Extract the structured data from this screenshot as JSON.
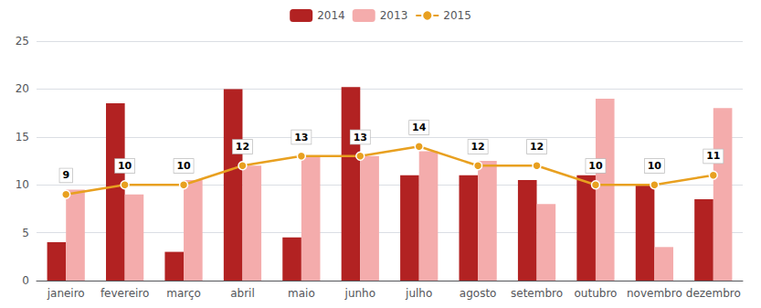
{
  "chart_data": {
    "type": "bar",
    "categories": [
      "janeiro",
      "fevereiro",
      "março",
      "abril",
      "maio",
      "junho",
      "julho",
      "agosto",
      "setembro",
      "outubro",
      "novembro",
      "dezembro"
    ],
    "series": [
      {
        "name": "2014",
        "type": "bar",
        "color": "#B22222",
        "values": [
          4.0,
          18.5,
          3.0,
          20.0,
          4.5,
          20.2,
          11.0,
          11.0,
          10.5,
          11.0,
          10.0,
          8.5
        ]
      },
      {
        "name": "2013",
        "type": "bar",
        "color": "#F4ACAC",
        "values": [
          9.5,
          9.0,
          10.5,
          12.0,
          13.0,
          13.0,
          13.5,
          12.5,
          8.0,
          19.0,
          3.5,
          18.0
        ]
      },
      {
        "name": "2015",
        "type": "line",
        "color": "#E8A020",
        "marker": "circle",
        "data_labels": true,
        "values": [
          9,
          10,
          10,
          12,
          13,
          13,
          14,
          12,
          12,
          10,
          10,
          11
        ]
      }
    ],
    "ylim": [
      0,
      25
    ],
    "yticks": [
      0,
      5,
      10,
      15,
      20,
      25
    ],
    "grid": true,
    "legend": "top"
  }
}
